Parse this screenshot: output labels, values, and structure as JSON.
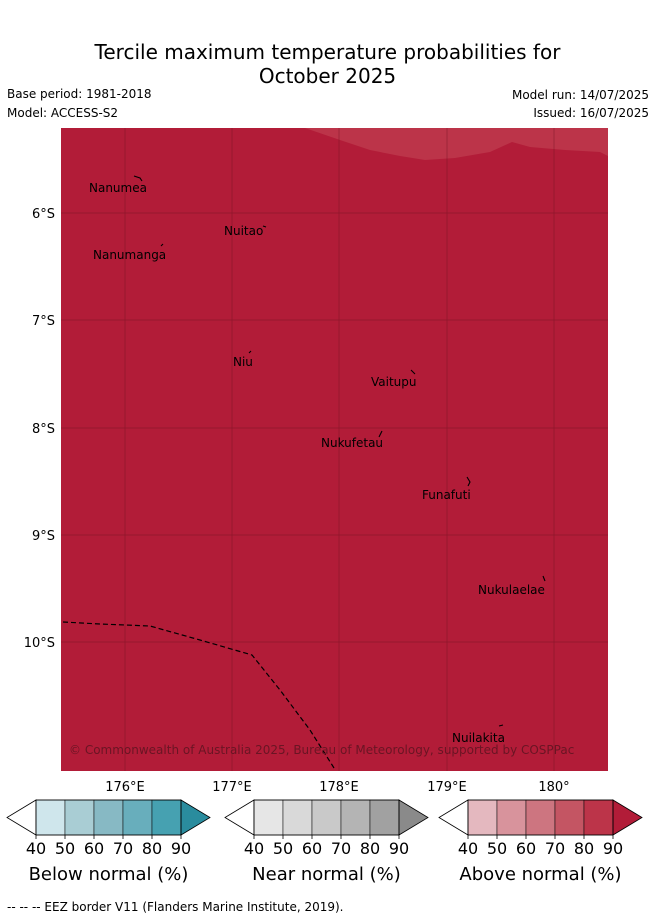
{
  "title_line1": "Tercile maximum temperature probabilities for",
  "title_line2": "October 2025",
  "base_period": "Base period: 1981-2018",
  "model": "Model: ACCESS-S2",
  "model_run": "Model run: 14/07/2025",
  "issued": "Issued: 16/07/2025",
  "map": {
    "fill_color": "#b21c38",
    "lat_labels": [
      "6°S",
      "7°S",
      "8°S",
      "9°S",
      "10°S"
    ],
    "lon_labels": [
      "176°E",
      "177°E",
      "178°E",
      "179°E",
      "180°"
    ],
    "places": [
      "Nanumea",
      "Nuitao",
      "Nanumanga",
      "Niu",
      "Vaitupu",
      "Nukufetau",
      "Funafuti",
      "Nukulaelae",
      "Nuilakita"
    ],
    "copyright": "© Commonwealth of Australia 2025, Bureau of Meteorology, supported by COSPPac"
  },
  "colorbars": [
    {
      "label": "Below normal (%)",
      "ticks": [
        "40",
        "50",
        "60",
        "70",
        "80",
        "90"
      ],
      "colors": [
        "#cfe6ec",
        "#a9cdd4",
        "#87b9c4",
        "#68aebc",
        "#46a1b1",
        "#2a8c9e"
      ]
    },
    {
      "label": "Near normal (%)",
      "ticks": [
        "40",
        "50",
        "60",
        "70",
        "80",
        "90"
      ],
      "colors": [
        "#e6e6e6",
        "#d9d9d9",
        "#c9c9c9",
        "#b4b4b4",
        "#a1a1a1",
        "#8a8a8a"
      ]
    },
    {
      "label": "Above normal (%)",
      "ticks": [
        "40",
        "50",
        "60",
        "70",
        "80",
        "90"
      ],
      "colors": [
        "#e4b8bf",
        "#d8939c",
        "#cd7580",
        "#c45563",
        "#bc3449",
        "#b21c38"
      ]
    }
  ],
  "footer": "--  --  -- EEZ border V11 (Flanders Marine Institute, 2019)."
}
